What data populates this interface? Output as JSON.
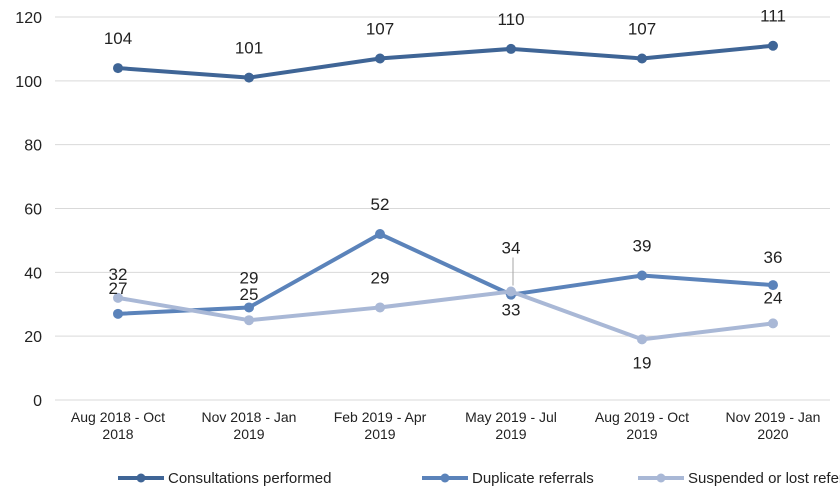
{
  "chart_data": {
    "type": "line",
    "categories": [
      [
        "Aug 2018 - Oct",
        "2018"
      ],
      [
        "Nov 2018 - Jan",
        "2019"
      ],
      [
        "Feb 2019 - Apr",
        "2019"
      ],
      [
        "May 2019 - Jul",
        "2019"
      ],
      [
        "Aug 2019 - Oct",
        "2019"
      ],
      [
        "Nov 2019 - Jan",
        "2020"
      ]
    ],
    "ylim": [
      0,
      120
    ],
    "yticks": [
      0,
      20,
      40,
      60,
      80,
      100,
      120
    ],
    "grid": true,
    "legend_position": "bottom",
    "series": [
      {
        "name": "Consultations performed",
        "values": [
          104,
          101,
          107,
          110,
          107,
          111
        ],
        "color": "#3f6596"
      },
      {
        "name": "Duplicate referrals",
        "values": [
          27,
          29,
          52,
          33,
          39,
          36
        ],
        "color": "#5b83ba"
      },
      {
        "name": "Suspended or lost referrals",
        "values": [
          32,
          25,
          29,
          34,
          19,
          24
        ],
        "color": "#a9b8d6"
      }
    ]
  }
}
